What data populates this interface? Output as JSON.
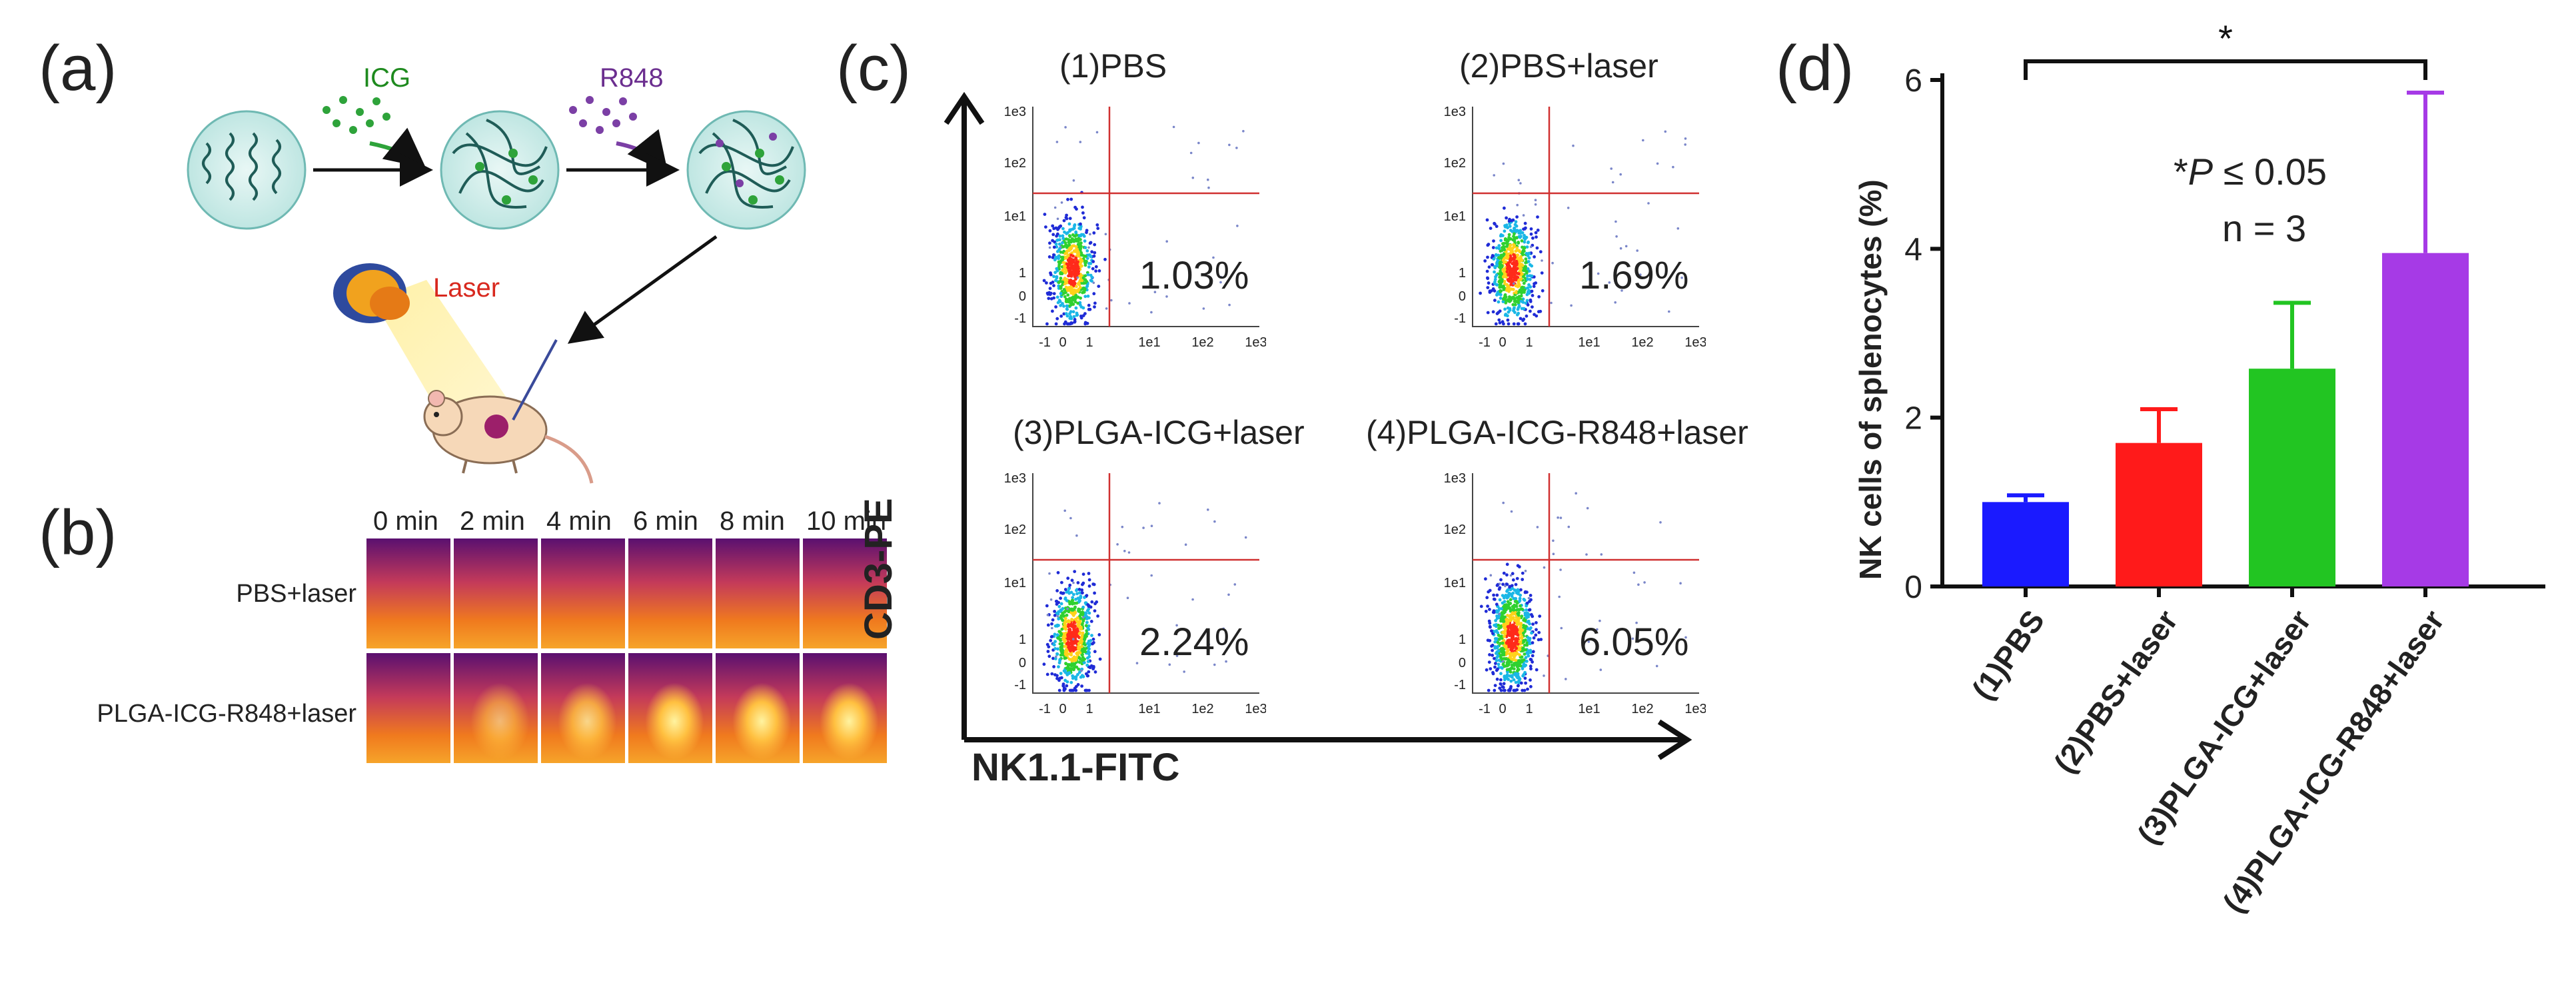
{
  "panel_labels": {
    "a": "(a)",
    "b": "(b)",
    "c": "(c)",
    "d": "(d)"
  },
  "panel_a": {
    "icg_label": "ICG",
    "r848_label": "R848",
    "laser_label": "Laser"
  },
  "panel_b": {
    "time_labels": [
      "0 min",
      "2 min",
      "4 min",
      "6 min",
      "8 min",
      "10 min"
    ],
    "row_labels": [
      "PBS+laser",
      "PLGA-ICG-R848+laser"
    ]
  },
  "panel_c": {
    "y_axis_label": "CD3-PE",
    "x_axis_label": "NK1.1-FITC",
    "tick_labels_x": [
      "-1",
      "0",
      "1",
      "1e1",
      "1e2",
      "1e3"
    ],
    "tick_labels_y": [
      "1e3",
      "1e2",
      "1e1",
      "1",
      "0",
      "-1"
    ],
    "plots": [
      {
        "title": "(1)PBS",
        "percent": "1.03%"
      },
      {
        "title": "(2)PBS+laser",
        "percent": "1.69%"
      },
      {
        "title": "(3)PLGA-ICG+laser",
        "percent": "2.24%"
      },
      {
        "title": "(4)PLGA-ICG-R848+laser",
        "percent": "6.05%"
      }
    ]
  },
  "colors": {
    "bar_pbs": "#1a1aff",
    "bar_pbs_laser": "#ff1a1a",
    "bar_plga_icg": "#22c522",
    "bar_plga_icg_r848": "#a63ae6",
    "laser_red": "#d8281e",
    "icg_green": "#1e8a1e",
    "r848_purple": "#6b2e8f"
  },
  "chart_data": {
    "type": "bar",
    "categories": [
      "(1)PBS",
      "(2)PBS+laser",
      "(3)PLGA-ICG+laser",
      "(4)PLGA-ICG-R848+laser"
    ],
    "values": [
      1.0,
      1.7,
      2.58,
      3.95
    ],
    "errors": [
      0.08,
      0.4,
      0.78,
      1.9
    ],
    "ylabel": "NK cells of splenocytes (%)",
    "xlabel": "",
    "ylim": [
      0,
      6
    ],
    "yticks": [
      "0",
      "2",
      "4",
      "6"
    ],
    "significance_marker": "*",
    "annotation_p_prefix": "*",
    "annotation_p_italic": "P",
    "annotation_p_suffix": " ≤ 0.05",
    "annotation_n": "n = 3"
  }
}
